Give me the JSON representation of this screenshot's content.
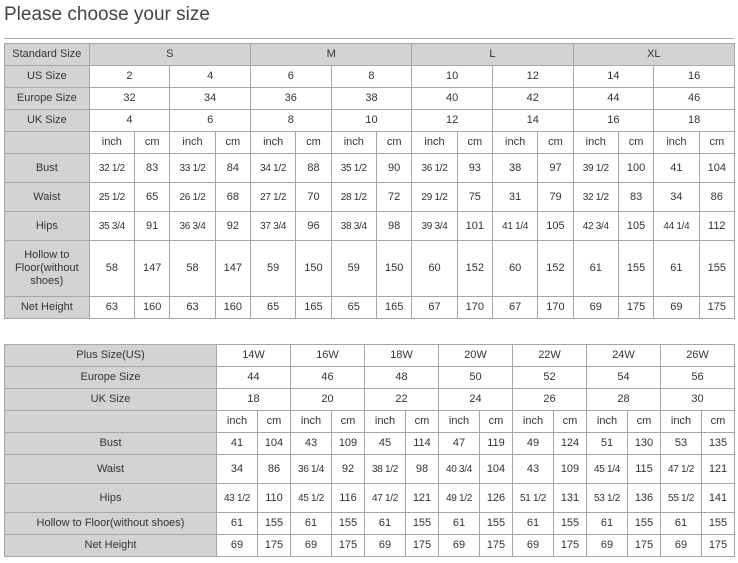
{
  "title": "Please choose your size",
  "table1": {
    "standard_label": "Standard Size",
    "standard_sizes": [
      "S",
      "M",
      "L",
      "XL"
    ],
    "us_label": "US Size",
    "us_sizes": [
      "2",
      "4",
      "6",
      "8",
      "10",
      "12",
      "14",
      "16"
    ],
    "europe_label": "Europe Size",
    "europe_sizes": [
      "32",
      "34",
      "36",
      "38",
      "40",
      "42",
      "44",
      "46"
    ],
    "uk_label": "UK Size",
    "uk_sizes": [
      "4",
      "6",
      "8",
      "10",
      "12",
      "14",
      "16",
      "18"
    ],
    "unit_inch": "inch",
    "unit_cm": "cm",
    "rows": [
      {
        "label": "Bust",
        "values": [
          "32 1/2",
          "83",
          "33 1/2",
          "84",
          "34 1/2",
          "88",
          "35 1/2",
          "90",
          "36 1/2",
          "93",
          "38",
          "97",
          "39 1/2",
          "100",
          "41",
          "104"
        ]
      },
      {
        "label": "Waist",
        "values": [
          "25 1/2",
          "65",
          "26 1/2",
          "68",
          "27 1/2",
          "70",
          "28 1/2",
          "72",
          "29 1/2",
          "75",
          "31",
          "79",
          "32 1/2",
          "83",
          "34",
          "86"
        ]
      },
      {
        "label": "Hips",
        "values": [
          "35 3/4",
          "91",
          "36 3/4",
          "92",
          "37 3/4",
          "96",
          "38 3/4",
          "98",
          "39 3/4",
          "101",
          "41 1/4",
          "105",
          "42 3/4",
          "105",
          "44 1/4",
          "112"
        ]
      },
      {
        "label": "Hollow to Floor(without shoes)",
        "values": [
          "58",
          "147",
          "58",
          "147",
          "59",
          "150",
          "59",
          "150",
          "60",
          "152",
          "60",
          "152",
          "61",
          "155",
          "61",
          "155"
        ]
      },
      {
        "label": "Net Height",
        "values": [
          "63",
          "160",
          "63",
          "160",
          "65",
          "165",
          "65",
          "165",
          "67",
          "170",
          "67",
          "170",
          "69",
          "175",
          "69",
          "175"
        ]
      }
    ]
  },
  "table2": {
    "plus_label": "Plus Size(US)",
    "plus_sizes": [
      "14W",
      "16W",
      "18W",
      "20W",
      "22W",
      "24W",
      "26W"
    ],
    "europe_label": "Europe Size",
    "europe_sizes": [
      "44",
      "46",
      "48",
      "50",
      "52",
      "54",
      "56"
    ],
    "uk_label": "UK Size",
    "uk_sizes": [
      "18",
      "20",
      "22",
      "24",
      "26",
      "28",
      "30"
    ],
    "unit_inch": "inch",
    "unit_cm": "cm",
    "rows": [
      {
        "label": "Bust",
        "values": [
          "41",
          "104",
          "43",
          "109",
          "45",
          "114",
          "47",
          "119",
          "49",
          "124",
          "51",
          "130",
          "53",
          "135"
        ]
      },
      {
        "label": "Waist",
        "values": [
          "34",
          "86",
          "36 1/4",
          "92",
          "38 1/2",
          "98",
          "40 3/4",
          "104",
          "43",
          "109",
          "45 1/4",
          "115",
          "47 1/2",
          "121"
        ]
      },
      {
        "label": "Hips",
        "values": [
          "43 1/2",
          "110",
          "45 1/2",
          "116",
          "47 1/2",
          "121",
          "49 1/2",
          "126",
          "51 1/2",
          "131",
          "53 1/2",
          "136",
          "55 1/2",
          "141"
        ]
      },
      {
        "label": "Hollow to Floor(without shoes)",
        "values": [
          "61",
          "155",
          "61",
          "155",
          "61",
          "155",
          "61",
          "155",
          "61",
          "155",
          "61",
          "155",
          "61",
          "155"
        ]
      },
      {
        "label": "Net Height",
        "values": [
          "69",
          "175",
          "69",
          "175",
          "69",
          "175",
          "69",
          "175",
          "69",
          "175",
          "69",
          "175",
          "69",
          "175"
        ]
      }
    ]
  }
}
